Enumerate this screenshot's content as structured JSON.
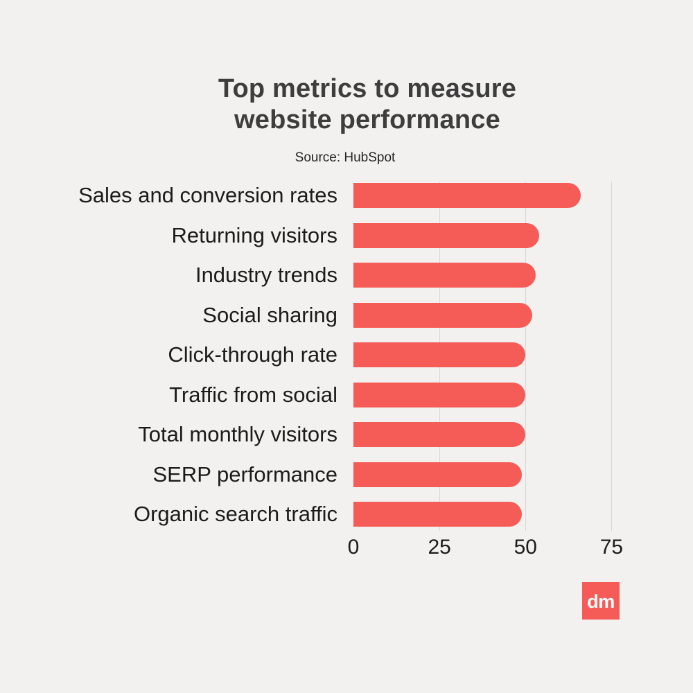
{
  "title": {
    "line1": "Top metrics to measure",
    "line2": "website performance"
  },
  "source": "Source: HubSpot",
  "chart_data": {
    "type": "bar",
    "orientation": "horizontal",
    "title": "Top metrics to measure website performance",
    "subtitle": "Source: HubSpot",
    "categories": [
      "Sales and conversion rates",
      "Returning visitors",
      "Industry trends",
      "Social sharing",
      "Click-through rate",
      "Traffic from social",
      "Total monthly visitors",
      "SERP performance",
      "Organic search traffic"
    ],
    "values": [
      66,
      54,
      53,
      52,
      50,
      50,
      50,
      49,
      49
    ],
    "xlabel": "",
    "ylabel": "",
    "xticks": [
      0,
      25,
      50,
      75
    ],
    "xlim": [
      0,
      82
    ],
    "grid": "vertical",
    "legend": false,
    "bar_color": "#f55c57",
    "background_color": "#f2f1f0"
  },
  "logo": {
    "text": "dm",
    "background": "#f55c57",
    "foreground": "#ffffff"
  }
}
